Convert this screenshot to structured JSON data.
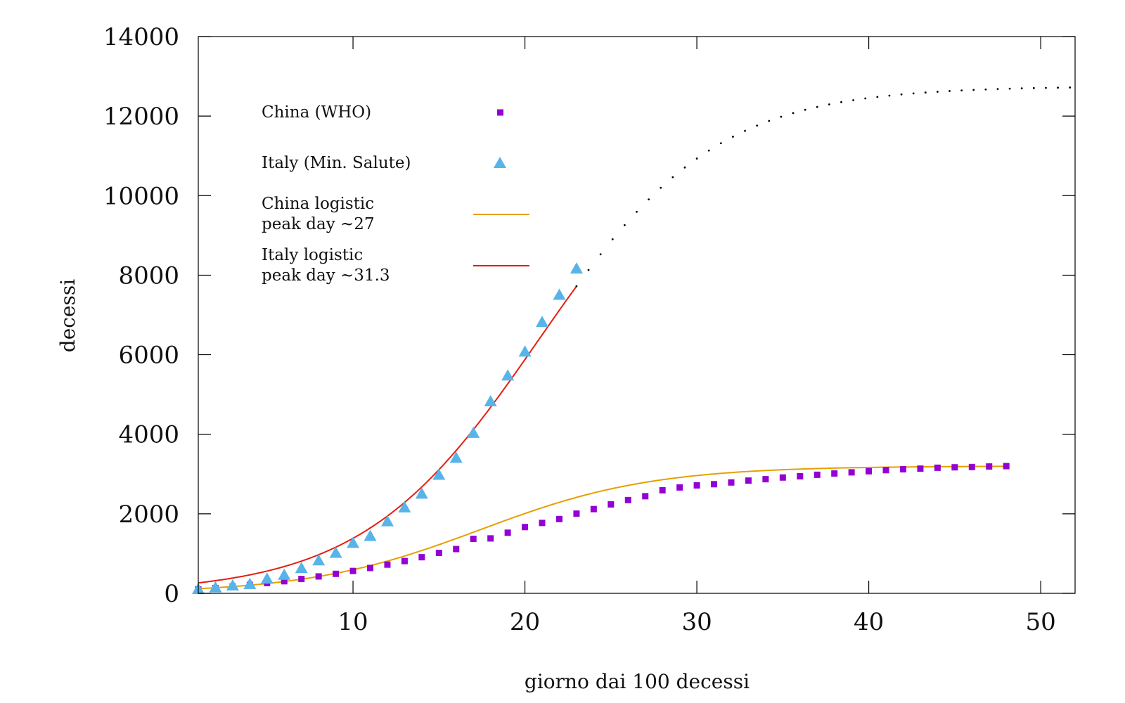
{
  "chart_data": {
    "type": "scatter",
    "title": "",
    "xlabel": "giorno dai 100 decessi",
    "ylabel": "decessi",
    "xlim": [
      1,
      52
    ],
    "ylim": [
      0,
      14000
    ],
    "xticks": [
      10,
      20,
      30,
      40,
      50
    ],
    "yticks": [
      0,
      2000,
      4000,
      6000,
      8000,
      10000,
      12000,
      14000
    ],
    "grid": false,
    "legend_position": "top-left",
    "colors": {
      "china_points": "#9400d3",
      "italy_points": "#56b4e9",
      "china_fit": "#e69f00",
      "italy_fit": "#e51e10",
      "extrapolation": "#000000"
    },
    "legend": [
      {
        "key": "china_points",
        "label": [
          "China (WHO)"
        ],
        "symbol": "square"
      },
      {
        "key": "italy_points",
        "label": [
          "Italy (Min. Salute)"
        ],
        "symbol": "triangle"
      },
      {
        "key": "china_fit",
        "label": [
          "China logistic",
          "peak day ~27"
        ],
        "symbol": "line"
      },
      {
        "key": "italy_fit",
        "label": [
          "Italy logistic",
          "peak day ~31.3"
        ],
        "symbol": "line"
      }
    ],
    "series": [
      {
        "name": "China (WHO)",
        "style": "points-square",
        "x": [
          1,
          2,
          3,
          4,
          5,
          6,
          7,
          8,
          9,
          10,
          11,
          12,
          13,
          14,
          15,
          16,
          17,
          18,
          19,
          20,
          21,
          22,
          23,
          24,
          25,
          26,
          27,
          28,
          29,
          30,
          31,
          32,
          33,
          34,
          35,
          36,
          37,
          38,
          39,
          40,
          41,
          42,
          43,
          44,
          45,
          46,
          47,
          48
        ],
        "y": [
          100,
          131,
          170,
          213,
          259,
          304,
          361,
          425,
          490,
          563,
          638,
          722,
          811,
          908,
          1016,
          1113,
          1370,
          1381,
          1524,
          1666,
          1770,
          1868,
          2004,
          2118,
          2236,
          2345,
          2442,
          2592,
          2663,
          2715,
          2744,
          2788,
          2835,
          2870,
          2912,
          2943,
          2981,
          3013,
          3042,
          3070,
          3097,
          3119,
          3136,
          3158,
          3169,
          3176,
          3189,
          3199
        ]
      },
      {
        "name": "Italy (Min. Salute)",
        "style": "points-triangle",
        "x": [
          1,
          2,
          3,
          4,
          5,
          6,
          7,
          8,
          9,
          10,
          11,
          12,
          13,
          14,
          15,
          16,
          17,
          18,
          19,
          20,
          21,
          22,
          23
        ],
        "y": [
          107,
          148,
          197,
          233,
          366,
          463,
          631,
          827,
          1016,
          1266,
          1441,
          1809,
          2158,
          2503,
          2978,
          3405,
          4032,
          4825,
          5476,
          6077,
          6820,
          7503,
          8165
        ]
      },
      {
        "name": "China logistic",
        "style": "line",
        "model": {
          "L": 3200,
          "k": 0.2,
          "x0": 17.4
        },
        "domain": [
          1,
          48
        ]
      },
      {
        "name": "Italy logistic",
        "style": "line",
        "model": {
          "L": 12750,
          "k": 0.195,
          "x0": 20.8
        },
        "domain": [
          1,
          23
        ]
      },
      {
        "name": "",
        "style": "dotted",
        "model": {
          "L": 12750,
          "k": 0.195,
          "x0": 20.8
        },
        "domain": [
          23,
          52
        ]
      }
    ]
  }
}
